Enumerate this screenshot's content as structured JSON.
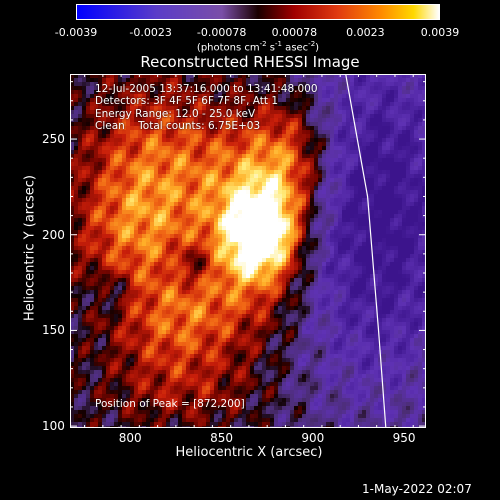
{
  "colorbar": {
    "ticks": [
      "-0.0039",
      "-0.0023",
      "-0.00078",
      "0.00078",
      "0.0023",
      "0.0039"
    ],
    "tick_values": [
      -0.0039,
      -0.0023,
      -0.00078,
      0.00078,
      0.0023,
      0.0039
    ],
    "range": [
      -0.0039,
      0.0039
    ],
    "unit_main": "(photons cm",
    "unit_exp1": "-2",
    "unit_mid": " s",
    "unit_exp2": "-1",
    "unit_mid2": " asec",
    "unit_exp3": "-2",
    "unit_end": ")"
  },
  "chart_data": {
    "type": "heatmap",
    "title": "Reconstructed RHESSI Image",
    "xlabel": "Heliocentric X (arcsec)",
    "ylabel": "Heliocentric Y (arcsec)",
    "xlim": [
      767,
      962
    ],
    "ylim": [
      99,
      284
    ],
    "x_ticks": [
      800,
      850,
      900,
      950
    ],
    "y_ticks": [
      100,
      150,
      200,
      250
    ],
    "limb_line": [
      [
        918,
        284
      ],
      [
        930,
        220
      ],
      [
        936,
        150
      ],
      [
        940,
        99
      ]
    ],
    "peak": [
      872,
      200
    ],
    "annotations": {
      "time_range": "12-Jul-2005 13:37:16.000 to 13:41:48.000",
      "detectors": "Detectors: 3F 4F 5F 6F 7F 8F, Att 1",
      "energy": "Energy Range: 12.0 - 25.0 keV",
      "method": "Clean",
      "counts": "Total counts: 6.75E+03",
      "peak_text": "Position of Peak = [872,200]"
    }
  },
  "footer": {
    "date": "1-May-2022 02:07"
  }
}
